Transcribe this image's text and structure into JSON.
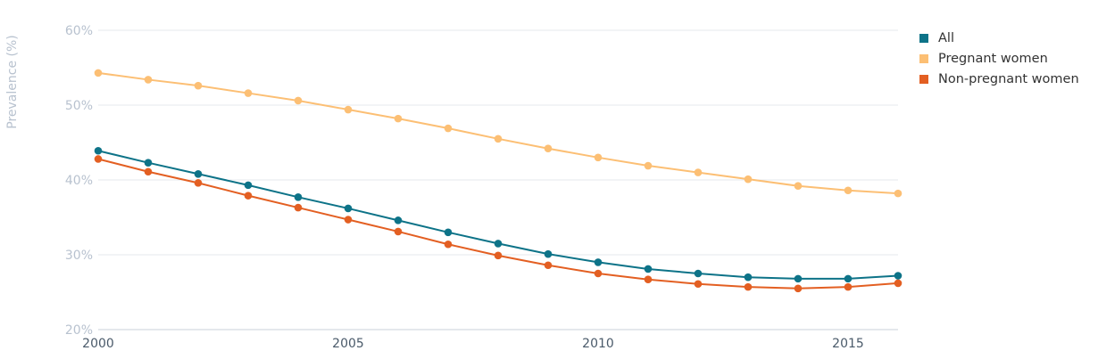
{
  "chart_data": {
    "type": "line",
    "ylabel": "Prevalence (%)",
    "xlabel": "",
    "x": [
      2000,
      2001,
      2002,
      2003,
      2004,
      2005,
      2006,
      2007,
      2008,
      2009,
      2010,
      2011,
      2012,
      2013,
      2014,
      2015,
      2016
    ],
    "xlim": [
      2000,
      2016
    ],
    "x_ticks": [
      2000,
      2005,
      2010,
      2015
    ],
    "x_tick_labels": [
      "2000",
      "2005",
      "2010",
      "2015"
    ],
    "ylim": [
      20,
      60
    ],
    "y_ticks": [
      20,
      30,
      40,
      50,
      60
    ],
    "y_tick_labels": [
      "20%",
      "30%",
      "40%",
      "50%",
      "60%"
    ],
    "grid": true,
    "legend_position": "top-right",
    "series": [
      {
        "name": "All",
        "color": "#0d7388",
        "values": [
          43.9,
          42.3,
          40.8,
          39.3,
          37.7,
          36.2,
          34.6,
          33.0,
          31.5,
          30.1,
          29.0,
          28.1,
          27.5,
          27.0,
          26.8,
          26.8,
          27.2
        ]
      },
      {
        "name": "Pregnant women",
        "color": "#fcbf74",
        "values": [
          54.3,
          53.4,
          52.6,
          51.6,
          50.6,
          49.4,
          48.2,
          46.9,
          45.5,
          44.2,
          43.0,
          41.9,
          41.0,
          40.1,
          39.2,
          38.6,
          38.2
        ]
      },
      {
        "name": "Non-pregnant women",
        "color": "#e35f22",
        "values": [
          42.8,
          41.1,
          39.6,
          37.9,
          36.3,
          34.7,
          33.1,
          31.4,
          29.9,
          28.6,
          27.5,
          26.7,
          26.1,
          25.7,
          25.5,
          25.7,
          26.2
        ]
      }
    ]
  }
}
